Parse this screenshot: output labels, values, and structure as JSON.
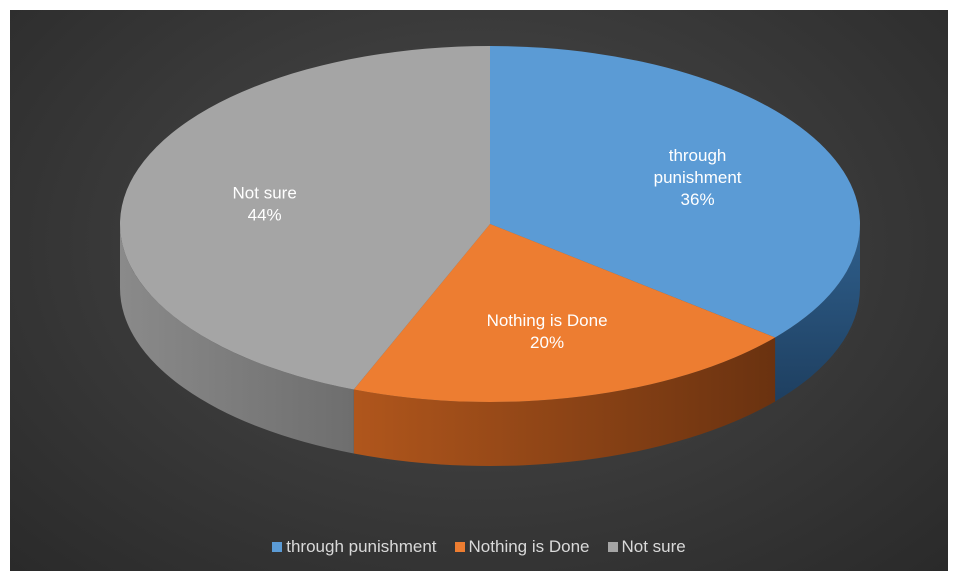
{
  "chart_data": {
    "type": "pie",
    "title": "",
    "categories": [
      "through punishment",
      "Nothing is Done",
      "Not sure"
    ],
    "values": [
      36,
      20,
      44
    ],
    "labels": [
      {
        "lines": [
          "through",
          "punishment",
          "36%"
        ]
      },
      {
        "lines": [
          "Nothing is Done",
          "20%"
        ]
      },
      {
        "lines": [
          "Not sure",
          "44%"
        ]
      }
    ],
    "colors": [
      "#5b9bd5",
      "#ed7d31",
      "#a5a5a5"
    ],
    "legend_position": "bottom",
    "style": "3d"
  },
  "legend": {
    "items": [
      {
        "label": "through punishment",
        "color": "#5b9bd5"
      },
      {
        "label": "Nothing is Done",
        "color": "#ed7d31"
      },
      {
        "label": "Not sure",
        "color": "#a5a5a5"
      }
    ]
  }
}
